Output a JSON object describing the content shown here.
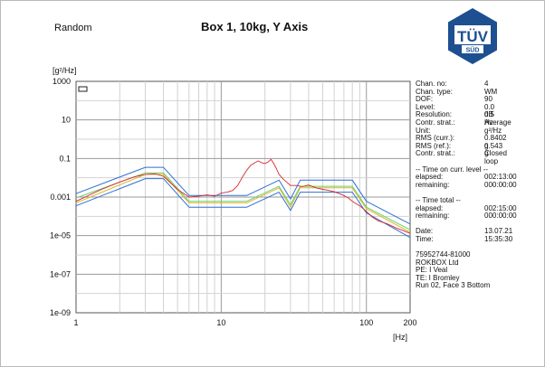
{
  "header": {
    "mode": "Random",
    "logo_text": "TÜV",
    "logo_subtext": "SÜD"
  },
  "info": {
    "chan_no": {
      "label": "Chan. no:",
      "value": "4"
    },
    "chan_type": {
      "label": "Chan. type:",
      "value": "WM"
    },
    "dof": {
      "label": "DOF:",
      "value": "90"
    },
    "level": {
      "label": "Level:",
      "value": "0.0 dB"
    },
    "resolution": {
      "label": "Resolution:",
      "value": "0.5 Hz"
    },
    "contr_strat": {
      "label": "Contr. strat.:",
      "value": "Average"
    },
    "unit": {
      "label": "Unit:",
      "value": "g²/Hz"
    },
    "rms_curr": {
      "label": "RMS (curr.):",
      "value": "0.8402 g"
    },
    "rms_ref": {
      "label": "RMS (ref.):",
      "value": "0.543 g"
    },
    "contr_strat_2": {
      "label": "Contr. strat.:",
      "value": "Closed loop"
    },
    "time_curr_heading": "-- Time on curr. level --",
    "elapsed_curr": {
      "label": "elapsed:",
      "value": "002:13:00"
    },
    "remaining_curr": {
      "label": "remaining:",
      "value": "000:00:00"
    },
    "time_total_heading": "-- Time total --",
    "elapsed_total": {
      "label": "elapsed:",
      "value": "002:15:00"
    },
    "remaining_total": {
      "label": "remaining:",
      "value": "000:00:00"
    },
    "date": {
      "label": "Date:",
      "value": "13.07.21"
    },
    "time": {
      "label": "Time:",
      "value": "15:35:30"
    },
    "footer": [
      "75952744-81000",
      "ROKBOX Ltd",
      "PE: I Veal",
      "TE: I Bromley",
      "Run 02, Face 3 Bottom"
    ]
  },
  "chart_data": {
    "type": "line",
    "title": "Box 1, 10kg, Y Axis",
    "xlabel": "[Hz]",
    "ylabel": "[g²/Hz]",
    "xscale": "log",
    "yscale": "log",
    "xlim": [
      1,
      200
    ],
    "ylim": [
      1e-09,
      1000
    ],
    "grid": true,
    "xticks": [
      {
        "v": 1,
        "label": "1"
      },
      {
        "v": 10,
        "label": "10"
      },
      {
        "v": 100,
        "label": "100"
      },
      {
        "v": 200,
        "label": "200"
      }
    ],
    "yticks": [
      {
        "v": 1000,
        "label": "1000"
      },
      {
        "v": 10,
        "label": "10"
      },
      {
        "v": 0.1,
        "label": "0.1"
      },
      {
        "v": 0.001,
        "label": "0.001"
      },
      {
        "v": 1e-05,
        "label": "1e-05"
      },
      {
        "v": 1e-07,
        "label": "1e-07"
      },
      {
        "v": 1e-09,
        "label": "1e-09"
      }
    ],
    "series": [
      {
        "color": "#2e6fd6",
        "points": [
          [
            1,
            0.0015
          ],
          [
            3,
            0.035
          ],
          [
            4,
            0.035
          ],
          [
            6,
            0.0012
          ],
          [
            15,
            0.0012
          ],
          [
            25,
            0.0075
          ],
          [
            30,
            0.0008
          ],
          [
            35,
            0.0075
          ],
          [
            80,
            0.0075
          ],
          [
            100,
            0.0006
          ],
          [
            200,
            4e-05
          ]
        ]
      },
      {
        "color": "#6bd06b",
        "points": [
          [
            1,
            0.0009
          ],
          [
            3,
            0.018
          ],
          [
            4,
            0.018
          ],
          [
            6,
            0.0006
          ],
          [
            15,
            0.0006
          ],
          [
            25,
            0.0036
          ],
          [
            30,
            0.0004
          ],
          [
            35,
            0.0036
          ],
          [
            80,
            0.0036
          ],
          [
            100,
            0.0003
          ],
          [
            200,
            2e-05
          ]
        ]
      },
      {
        "color": "#d9b72b",
        "points": [
          [
            1,
            0.0005
          ],
          [
            3,
            0.015
          ],
          [
            4,
            0.015
          ],
          [
            6,
            0.0005
          ],
          [
            15,
            0.0005
          ],
          [
            25,
            0.003
          ],
          [
            30,
            0.0003
          ],
          [
            35,
            0.003
          ],
          [
            80,
            0.003
          ],
          [
            100,
            0.00025
          ],
          [
            200,
            1.5e-05
          ]
        ]
      },
      {
        "color": "#2e6fd6",
        "points": [
          [
            1,
            0.00035
          ],
          [
            3,
            0.009
          ],
          [
            4,
            0.009
          ],
          [
            6,
            0.0003
          ],
          [
            15,
            0.0003
          ],
          [
            25,
            0.0018
          ],
          [
            30,
            0.0002
          ],
          [
            35,
            0.0018
          ],
          [
            80,
            0.0018
          ],
          [
            100,
            0.00015
          ],
          [
            200,
            8e-06
          ]
        ]
      },
      {
        "color": "#d62828",
        "points": [
          [
            1,
            0.0006
          ],
          [
            1.5,
            0.0025
          ],
          [
            2,
            0.006
          ],
          [
            2.5,
            0.011
          ],
          [
            3,
            0.015
          ],
          [
            3.5,
            0.016
          ],
          [
            4,
            0.012
          ],
          [
            5,
            0.0025
          ],
          [
            6,
            0.001
          ],
          [
            7,
            0.0011
          ],
          [
            8,
            0.0013
          ],
          [
            9,
            0.0011
          ],
          [
            10,
            0.0016
          ],
          [
            11,
            0.0018
          ],
          [
            12,
            0.0022
          ],
          [
            13,
            0.004
          ],
          [
            14,
            0.011
          ],
          [
            15,
            0.025
          ],
          [
            16,
            0.045
          ],
          [
            17,
            0.06
          ],
          [
            18,
            0.075
          ],
          [
            19,
            0.06
          ],
          [
            20,
            0.055
          ],
          [
            21,
            0.065
          ],
          [
            22,
            0.09
          ],
          [
            23,
            0.055
          ],
          [
            24,
            0.03
          ],
          [
            25,
            0.015
          ],
          [
            27,
            0.008
          ],
          [
            30,
            0.004
          ],
          [
            33,
            0.004
          ],
          [
            36,
            0.0035
          ],
          [
            40,
            0.0042
          ],
          [
            45,
            0.003
          ],
          [
            50,
            0.0025
          ],
          [
            55,
            0.0022
          ],
          [
            60,
            0.0019
          ],
          [
            65,
            0.0015
          ],
          [
            70,
            0.0012
          ],
          [
            75,
            0.0009
          ],
          [
            80,
            0.0006
          ],
          [
            90,
            0.00035
          ],
          [
            100,
            0.00018
          ],
          [
            110,
            9e-05
          ],
          [
            120,
            6e-05
          ],
          [
            140,
            4e-05
          ],
          [
            160,
            2.5e-05
          ],
          [
            180,
            1.8e-05
          ],
          [
            200,
            1.3e-05
          ]
        ]
      }
    ]
  }
}
